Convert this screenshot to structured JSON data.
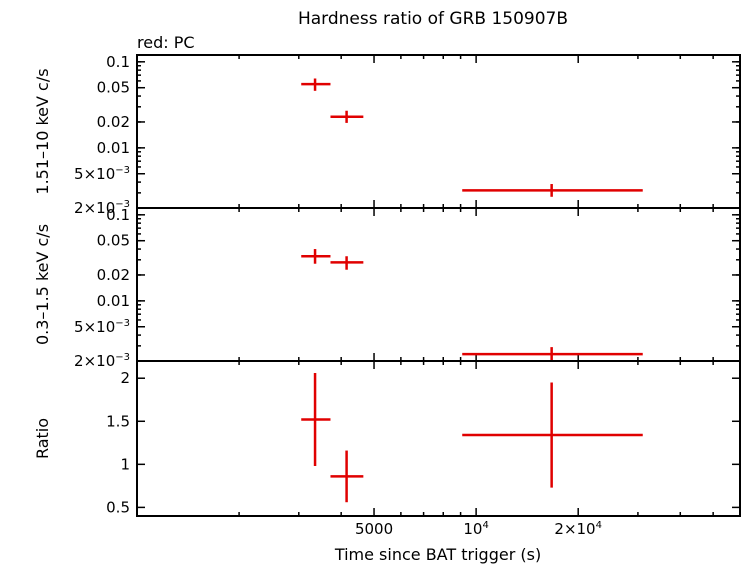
{
  "chart_data": {
    "type": "scatter",
    "title": "Hardness ratio of GRB 150907B",
    "legend_text": "red: PC",
    "xlabel": "Time since BAT trigger (s)",
    "x_scale": "log",
    "xlim": [
      1000,
      60000
    ],
    "x_ticks": [
      {
        "value": 5000,
        "label": "5000"
      },
      {
        "value": 10000,
        "label": "10",
        "sup": "4"
      },
      {
        "value": 20000,
        "label": "2×10",
        "sup": "4"
      }
    ],
    "panels": [
      {
        "id": "hard",
        "ylabel": "1.51–10 keV c/s",
        "y_scale": "log",
        "ylim": [
          0.002,
          0.12
        ],
        "y_ticks": [
          {
            "value": 0.1,
            "label": "0.1"
          },
          {
            "value": 0.05,
            "label": "0.05"
          },
          {
            "value": 0.02,
            "label": "0.02"
          },
          {
            "value": 0.01,
            "label": "0.01"
          },
          {
            "value": 0.005,
            "label": "5×10",
            "sup": "−3"
          },
          {
            "value": 0.002,
            "label": "2×10",
            "sup": "−3"
          }
        ],
        "points": [
          {
            "x": 3350,
            "xlo": 3050,
            "xhi": 3720,
            "y": 0.055,
            "ylo": 0.046,
            "yhi": 0.064
          },
          {
            "x": 4150,
            "xlo": 3720,
            "xhi": 4650,
            "y": 0.023,
            "ylo": 0.0195,
            "yhi": 0.027
          },
          {
            "x": 16700,
            "xlo": 9100,
            "xhi": 31000,
            "y": 0.0032,
            "ylo": 0.0027,
            "yhi": 0.0038
          }
        ]
      },
      {
        "id": "soft",
        "ylabel": "0.3–1.5 keV c/s",
        "y_scale": "log",
        "ylim": [
          0.002,
          0.12
        ],
        "y_ticks": [
          {
            "value": 0.1,
            "label": "0.1"
          },
          {
            "value": 0.05,
            "label": "0.05"
          },
          {
            "value": 0.02,
            "label": "0.02"
          },
          {
            "value": 0.01,
            "label": "0.01"
          },
          {
            "value": 0.005,
            "label": "5×10",
            "sup": "−3"
          },
          {
            "value": 0.002,
            "label": "2×10",
            "sup": "−3"
          }
        ],
        "points": [
          {
            "x": 3350,
            "xlo": 3050,
            "xhi": 3720,
            "y": 0.033,
            "ylo": 0.027,
            "yhi": 0.04
          },
          {
            "x": 4150,
            "xlo": 3720,
            "xhi": 4650,
            "y": 0.028,
            "ylo": 0.023,
            "yhi": 0.033
          },
          {
            "x": 16700,
            "xlo": 9100,
            "xhi": 31000,
            "y": 0.0024,
            "ylo": 0.002,
            "yhi": 0.0029
          }
        ]
      },
      {
        "id": "ratio",
        "ylabel": "Ratio",
        "y_scale": "linear",
        "ylim": [
          0.4,
          2.2
        ],
        "y_ticks": [
          {
            "value": 2,
            "label": "2"
          },
          {
            "value": 1.5,
            "label": "1.5"
          },
          {
            "value": 1,
            "label": "1"
          },
          {
            "value": 0.5,
            "label": "0.5"
          }
        ],
        "points": [
          {
            "x": 3350,
            "xlo": 3050,
            "xhi": 3720,
            "y": 1.52,
            "ylo": 0.98,
            "yhi": 2.06
          },
          {
            "x": 4150,
            "xlo": 3720,
            "xhi": 4650,
            "y": 0.86,
            "ylo": 0.56,
            "yhi": 1.16
          },
          {
            "x": 16700,
            "xlo": 9100,
            "xhi": 31000,
            "y": 1.34,
            "ylo": 0.73,
            "yhi": 1.95
          }
        ]
      }
    ],
    "colors": {
      "series": "#e00000",
      "axes": "#000000"
    }
  }
}
